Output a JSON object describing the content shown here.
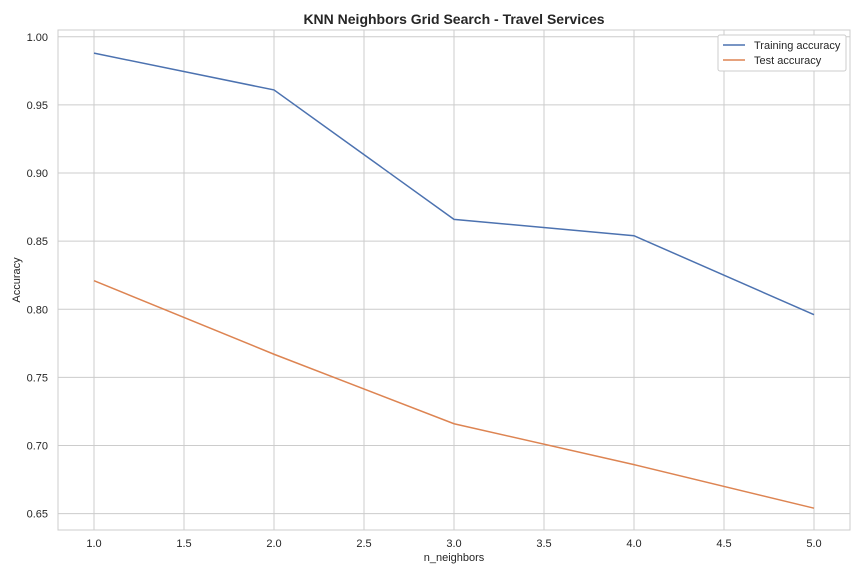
{
  "chart_data": {
    "type": "line",
    "title": "KNN Neighbors Grid Search - Travel Services",
    "xlabel": "n_neighbors",
    "ylabel": "Accuracy",
    "x": [
      1.0,
      2.0,
      3.0,
      4.0,
      5.0
    ],
    "xlim": [
      0.8,
      5.2
    ],
    "ylim": [
      0.638,
      1.005
    ],
    "xticks": [
      "1.0",
      "1.5",
      "2.0",
      "2.5",
      "3.0",
      "3.5",
      "4.0",
      "4.5",
      "5.0"
    ],
    "yticks": [
      "0.65",
      "0.70",
      "0.75",
      "0.80",
      "0.85",
      "0.90",
      "0.95",
      "1.00"
    ],
    "grid": true,
    "legend_position": "top-right",
    "series": [
      {
        "name": "Training accuracy",
        "color": "#4c72b0",
        "values": [
          0.988,
          0.961,
          0.866,
          0.854,
          0.796
        ]
      },
      {
        "name": "Test accuracy",
        "color": "#dd8452",
        "values": [
          0.821,
          0.767,
          0.716,
          0.686,
          0.654
        ]
      }
    ]
  }
}
